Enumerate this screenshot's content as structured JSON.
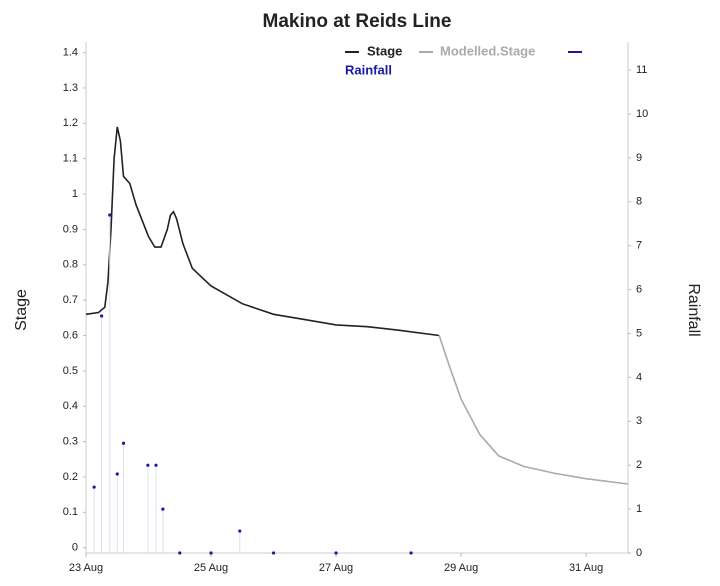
{
  "chart_data": {
    "type": "line",
    "title": "Makino at Reids Line",
    "y_label": "Stage",
    "y2_label": "Rainfall",
    "xlim": [
      0,
      8.67
    ],
    "xticks": [
      {
        "value": 0,
        "label": "23 Aug"
      },
      {
        "value": 2,
        "label": "25 Aug"
      },
      {
        "value": 4,
        "label": "27 Aug"
      },
      {
        "value": 6,
        "label": "29 Aug"
      },
      {
        "value": 8,
        "label": "31 Aug"
      }
    ],
    "ylim": [
      -0.015,
      1.43
    ],
    "yticks": [
      0,
      0.1,
      0.2,
      0.3,
      0.4,
      0.5,
      0.6,
      0.7,
      0.8,
      0.9,
      1,
      1.1,
      1.2,
      1.3,
      1.4
    ],
    "y2lim": [
      0,
      11.64
    ],
    "y2ticks": [
      0,
      1,
      2,
      3,
      4,
      5,
      6,
      7,
      8,
      9,
      10,
      11
    ],
    "series": [
      {
        "name": "Stage",
        "color": "#222222",
        "x": [
          0,
          0.2,
          0.3,
          0.35,
          0.4,
          0.45,
          0.5,
          0.55,
          0.6,
          0.7,
          0.8,
          1.0,
          1.1,
          1.2,
          1.3,
          1.35,
          1.4,
          1.45,
          1.55,
          1.7,
          2.0,
          2.5,
          3.0,
          3.5,
          4.0,
          4.5,
          5.0,
          5.65
        ],
        "values": [
          0.66,
          0.665,
          0.68,
          0.75,
          0.9,
          1.1,
          1.19,
          1.15,
          1.05,
          1.03,
          0.97,
          0.88,
          0.85,
          0.85,
          0.9,
          0.94,
          0.95,
          0.93,
          0.86,
          0.79,
          0.74,
          0.69,
          0.66,
          0.645,
          0.63,
          0.625,
          0.615,
          0.6
        ]
      },
      {
        "name": "Modelled.Stage",
        "color": "#aaaaaa",
        "x": [
          5.65,
          5.8,
          6.0,
          6.3,
          6.6,
          7.0,
          7.5,
          8.0,
          8.67
        ],
        "values": [
          0.6,
          0.52,
          0.42,
          0.32,
          0.26,
          0.23,
          0.21,
          0.195,
          0.18
        ]
      },
      {
        "name": "Rainfall",
        "color": "#1a1aa0",
        "axis": "y2",
        "marker": "point",
        "x": [
          0.13,
          0.25,
          0.38,
          0.5,
          0.6,
          0.99,
          1.12,
          1.23,
          1.5,
          2.0,
          2.46,
          3.0,
          4.0,
          5.2
        ],
        "values": [
          1.5,
          5.4,
          7.7,
          1.8,
          2.5,
          2.0,
          2.0,
          1.0,
          0,
          0,
          0.5,
          0,
          0,
          0
        ]
      }
    ]
  }
}
